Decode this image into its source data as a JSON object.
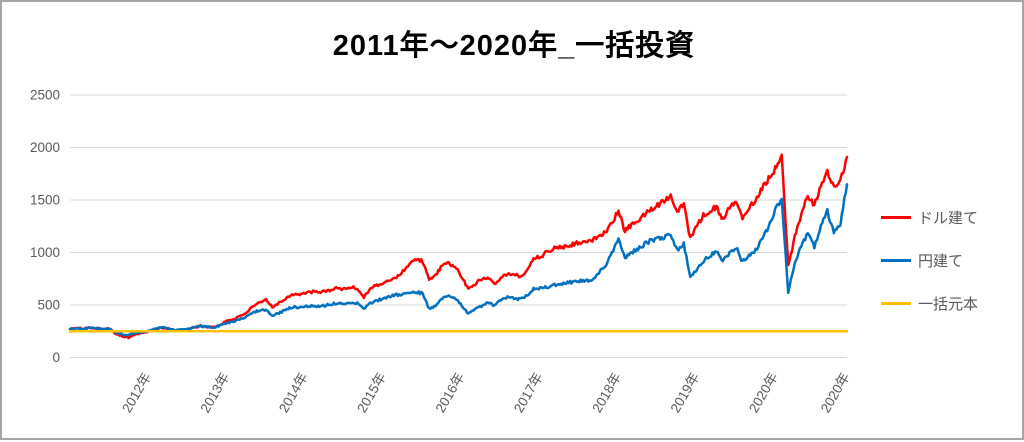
{
  "title": "2011年～2020年_一括投資",
  "colors": {
    "series_red": "#FF0000",
    "series_blue": "#0070C0",
    "series_gold": "#FFC000",
    "gridline": "#D9D9D9",
    "axis_label": "#595959",
    "frame_border": "#A6A6A6"
  },
  "legend": {
    "position": "right",
    "items": [
      {
        "label": "ドル建て",
        "color": "#FF0000"
      },
      {
        "label": "円建て",
        "color": "#0070C0"
      },
      {
        "label": "一括元本",
        "color": "#FFC000"
      }
    ]
  },
  "chart_data": {
    "type": "line",
    "title": "2011年～2020年_一括投資",
    "xlabel": "",
    "ylabel": "",
    "x_unit": "months from 2011-01 to 2020-12",
    "ylim": [
      0,
      2500
    ],
    "y_ticks": [
      0,
      500,
      1000,
      1500,
      2000,
      2500
    ],
    "grid": "horizontal",
    "legend_position": "right",
    "x_ticks": [
      {
        "label": "2012年",
        "month": 12
      },
      {
        "label": "2013年",
        "month": 24
      },
      {
        "label": "2014年",
        "month": 36
      },
      {
        "label": "2015年",
        "month": 48
      },
      {
        "label": "2016年",
        "month": 60
      },
      {
        "label": "2017年",
        "month": 72
      },
      {
        "label": "2018年",
        "month": 84
      },
      {
        "label": "2019年",
        "month": 96
      },
      {
        "label": "2020年",
        "month": 108
      },
      {
        "label": "2020年",
        "month": 119
      }
    ],
    "series": [
      {
        "name": "ドル建て",
        "color": "#FF0000",
        "monthly_values": [
          270,
          280,
          274,
          285,
          282,
          272,
          275,
          228,
          205,
          190,
          222,
          232,
          248,
          272,
          285,
          278,
          255,
          262,
          272,
          285,
          300,
          292,
          288,
          310,
          350,
          365,
          390,
          430,
          480,
          520,
          548,
          485,
          520,
          560,
          605,
          600,
          610,
          625,
          618,
          632,
          645,
          660,
          650,
          672,
          655,
          575,
          660,
          690,
          700,
          740,
          765,
          820,
          900,
          935,
          920,
          735,
          790,
          870,
          895,
          870,
          760,
          655,
          700,
          745,
          765,
          705,
          765,
          795,
          785,
          775,
          825,
          950,
          960,
          1000,
          1040,
          1050,
          1060,
          1080,
          1100,
          1090,
          1120,
          1160,
          1200,
          1280,
          1395,
          1200,
          1270,
          1300,
          1360,
          1410,
          1450,
          1500,
          1545,
          1400,
          1470,
          1130,
          1250,
          1350,
          1400,
          1435,
          1310,
          1430,
          1480,
          1340,
          1430,
          1500,
          1620,
          1700,
          1800,
          1930,
          870,
          1150,
          1350,
          1550,
          1450,
          1620,
          1770,
          1610,
          1700,
          1910
        ]
      },
      {
        "name": "円建て",
        "color": "#0070C0",
        "monthly_values": [
          270,
          278,
          272,
          282,
          279,
          271,
          273,
          236,
          220,
          215,
          232,
          240,
          252,
          275,
          288,
          280,
          258,
          264,
          272,
          284,
          298,
          290,
          286,
          305,
          330,
          342,
          360,
          390,
          425,
          450,
          452,
          400,
          425,
          450,
          480,
          478,
          485,
          492,
          487,
          495,
          505,
          520,
          512,
          528,
          515,
          462,
          520,
          545,
          558,
          580,
          595,
          605,
          615,
          625,
          610,
          462,
          490,
          560,
          590,
          570,
          490,
          420,
          455,
          490,
          525,
          490,
          545,
          572,
          562,
          555,
          592,
          652,
          657,
          672,
          690,
          700,
          710,
          720,
          730,
          725,
          750,
          800,
          880,
          1000,
          1130,
          950,
          1000,
          1030,
          1080,
          1110,
          1130,
          1150,
          1160,
          1020,
          1080,
          760,
          845,
          920,
          970,
          1005,
          920,
          1000,
          1050,
          910,
          980,
          1020,
          1120,
          1250,
          1400,
          1510,
          620,
          900,
          1060,
          1180,
          1060,
          1250,
          1390,
          1180,
          1270,
          1650
        ]
      },
      {
        "name": "一括元本",
        "color": "#FFC000",
        "constant_value": 250
      }
    ]
  }
}
